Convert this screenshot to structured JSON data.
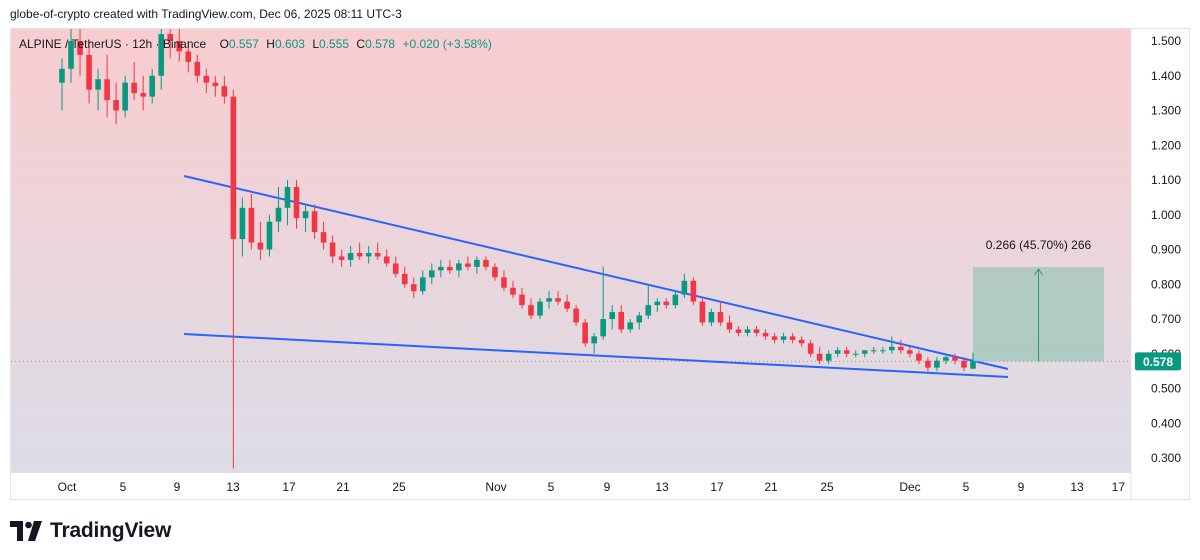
{
  "attribution": "globe-of-crypto created with TradingView.com, Dec 06, 2025 08:11 UTC-3",
  "brand": "TradingView",
  "legend": {
    "symbol": "ALPINE / TetherUS · 12h · Binance",
    "o_label": "O",
    "o_value": "0.557",
    "h_label": "H",
    "h_value": "0.603",
    "l_label": "L",
    "l_value": "0.555",
    "c_label": "C",
    "c_value": "0.578",
    "change": "+0.020 (+3.58%)"
  },
  "colors": {
    "up": "#089981",
    "down": "#f23645",
    "trendline": "#2962ff",
    "target_box": "#9fc6b8",
    "target_line": "#22a05a"
  },
  "chart_data": {
    "type": "candlestick",
    "symbol": "ALPINE / TetherUS",
    "timeframe": "12h",
    "exchange": "Binance",
    "ylim": [
      0.25,
      1.55
    ],
    "y_ticks": [
      "1.500",
      "1.400",
      "1.300",
      "1.200",
      "1.100",
      "1.000",
      "0.900",
      "0.800",
      "0.700",
      "0.600",
      "0.500",
      "0.400",
      "0.300"
    ],
    "x_ticks": [
      "Oct",
      "5",
      "9",
      "13",
      "17",
      "21",
      "25",
      "Nov",
      "5",
      "9",
      "13",
      "17",
      "21",
      "25",
      "Dec",
      "5",
      "9",
      "13",
      "17"
    ],
    "last_price": "0.578",
    "candles": [
      [
        1.38,
        1.45,
        1.3,
        1.42
      ],
      [
        1.42,
        1.55,
        1.38,
        1.5
      ],
      [
        1.5,
        1.55,
        1.4,
        1.46
      ],
      [
        1.46,
        1.5,
        1.32,
        1.36
      ],
      [
        1.36,
        1.42,
        1.3,
        1.39
      ],
      [
        1.39,
        1.46,
        1.28,
        1.33
      ],
      [
        1.33,
        1.38,
        1.26,
        1.3
      ],
      [
        1.3,
        1.4,
        1.28,
        1.38
      ],
      [
        1.38,
        1.44,
        1.33,
        1.35
      ],
      [
        1.35,
        1.4,
        1.3,
        1.34
      ],
      [
        1.34,
        1.42,
        1.32,
        1.4
      ],
      [
        1.4,
        1.55,
        1.36,
        1.52
      ],
      [
        1.52,
        1.55,
        1.45,
        1.5
      ],
      [
        1.5,
        1.55,
        1.44,
        1.47
      ],
      [
        1.47,
        1.5,
        1.41,
        1.44
      ],
      [
        1.44,
        1.46,
        1.38,
        1.4
      ],
      [
        1.4,
        1.42,
        1.35,
        1.38
      ],
      [
        1.38,
        1.4,
        1.34,
        1.37
      ],
      [
        1.37,
        1.4,
        1.32,
        1.34
      ],
      [
        1.34,
        1.36,
        0.27,
        0.93
      ],
      [
        0.93,
        1.05,
        0.88,
        1.02
      ],
      [
        1.02,
        1.06,
        0.9,
        0.92
      ],
      [
        0.92,
        0.98,
        0.87,
        0.9
      ],
      [
        0.9,
        1.0,
        0.88,
        0.98
      ],
      [
        0.98,
        1.08,
        0.95,
        1.02
      ],
      [
        1.02,
        1.1,
        0.97,
        1.08
      ],
      [
        1.08,
        1.1,
        0.96,
        0.99
      ],
      [
        0.99,
        1.03,
        0.95,
        1.01
      ],
      [
        1.01,
        1.03,
        0.93,
        0.95
      ],
      [
        0.95,
        0.98,
        0.9,
        0.92
      ],
      [
        0.92,
        0.94,
        0.86,
        0.88
      ],
      [
        0.88,
        0.9,
        0.85,
        0.87
      ],
      [
        0.87,
        0.91,
        0.85,
        0.89
      ],
      [
        0.89,
        0.92,
        0.87,
        0.88
      ],
      [
        0.88,
        0.91,
        0.86,
        0.89
      ],
      [
        0.89,
        0.92,
        0.87,
        0.88
      ],
      [
        0.88,
        0.9,
        0.85,
        0.86
      ],
      [
        0.86,
        0.88,
        0.82,
        0.83
      ],
      [
        0.83,
        0.85,
        0.79,
        0.8
      ],
      [
        0.8,
        0.82,
        0.76,
        0.78
      ],
      [
        0.78,
        0.84,
        0.77,
        0.82
      ],
      [
        0.82,
        0.86,
        0.8,
        0.84
      ],
      [
        0.84,
        0.87,
        0.82,
        0.85
      ],
      [
        0.85,
        0.87,
        0.83,
        0.84
      ],
      [
        0.84,
        0.87,
        0.82,
        0.86
      ],
      [
        0.86,
        0.88,
        0.84,
        0.85
      ],
      [
        0.85,
        0.88,
        0.83,
        0.87
      ],
      [
        0.87,
        0.88,
        0.84,
        0.85
      ],
      [
        0.85,
        0.86,
        0.81,
        0.82
      ],
      [
        0.82,
        0.84,
        0.78,
        0.79
      ],
      [
        0.79,
        0.81,
        0.76,
        0.77
      ],
      [
        0.77,
        0.79,
        0.73,
        0.74
      ],
      [
        0.74,
        0.76,
        0.7,
        0.71
      ],
      [
        0.71,
        0.76,
        0.7,
        0.75
      ],
      [
        0.75,
        0.78,
        0.73,
        0.76
      ],
      [
        0.76,
        0.78,
        0.74,
        0.75
      ],
      [
        0.75,
        0.77,
        0.72,
        0.73
      ],
      [
        0.73,
        0.74,
        0.68,
        0.69
      ],
      [
        0.69,
        0.7,
        0.62,
        0.63
      ],
      [
        0.63,
        0.66,
        0.6,
        0.65
      ],
      [
        0.65,
        0.85,
        0.64,
        0.7
      ],
      [
        0.7,
        0.74,
        0.67,
        0.72
      ],
      [
        0.72,
        0.74,
        0.66,
        0.67
      ],
      [
        0.67,
        0.7,
        0.66,
        0.69
      ],
      [
        0.69,
        0.72,
        0.67,
        0.71
      ],
      [
        0.71,
        0.8,
        0.7,
        0.74
      ],
      [
        0.74,
        0.76,
        0.72,
        0.75
      ],
      [
        0.75,
        0.76,
        0.73,
        0.74
      ],
      [
        0.74,
        0.78,
        0.73,
        0.77
      ],
      [
        0.77,
        0.83,
        0.76,
        0.81
      ],
      [
        0.81,
        0.82,
        0.74,
        0.75
      ],
      [
        0.75,
        0.76,
        0.68,
        0.69
      ],
      [
        0.69,
        0.73,
        0.68,
        0.72
      ],
      [
        0.72,
        0.75,
        0.68,
        0.69
      ],
      [
        0.69,
        0.71,
        0.66,
        0.67
      ],
      [
        0.67,
        0.68,
        0.65,
        0.66
      ],
      [
        0.66,
        0.68,
        0.65,
        0.67
      ],
      [
        0.67,
        0.68,
        0.65,
        0.66
      ],
      [
        0.66,
        0.67,
        0.64,
        0.65
      ],
      [
        0.65,
        0.66,
        0.63,
        0.64
      ],
      [
        0.64,
        0.66,
        0.63,
        0.65
      ],
      [
        0.65,
        0.66,
        0.63,
        0.64
      ],
      [
        0.64,
        0.65,
        0.62,
        0.63
      ],
      [
        0.63,
        0.64,
        0.59,
        0.6
      ],
      [
        0.6,
        0.62,
        0.57,
        0.58
      ],
      [
        0.58,
        0.61,
        0.57,
        0.6
      ],
      [
        0.6,
        0.62,
        0.59,
        0.61
      ],
      [
        0.61,
        0.62,
        0.59,
        0.6
      ],
      [
        0.6,
        0.61,
        0.59,
        0.6
      ],
      [
        0.6,
        0.61,
        0.59,
        0.61
      ],
      [
        0.61,
        0.62,
        0.6,
        0.61
      ],
      [
        0.61,
        0.62,
        0.6,
        0.61
      ],
      [
        0.61,
        0.65,
        0.6,
        0.62
      ],
      [
        0.62,
        0.64,
        0.6,
        0.61
      ],
      [
        0.61,
        0.62,
        0.59,
        0.6
      ],
      [
        0.6,
        0.61,
        0.57,
        0.58
      ],
      [
        0.58,
        0.59,
        0.55,
        0.56
      ],
      [
        0.56,
        0.59,
        0.55,
        0.58
      ],
      [
        0.58,
        0.6,
        0.57,
        0.59
      ],
      [
        0.59,
        0.6,
        0.57,
        0.58
      ],
      [
        0.58,
        0.59,
        0.55,
        0.56
      ],
      [
        0.557,
        0.603,
        0.555,
        0.578
      ]
    ]
  },
  "annotations": {
    "target_label": "0.266 (45.70%) 266"
  }
}
